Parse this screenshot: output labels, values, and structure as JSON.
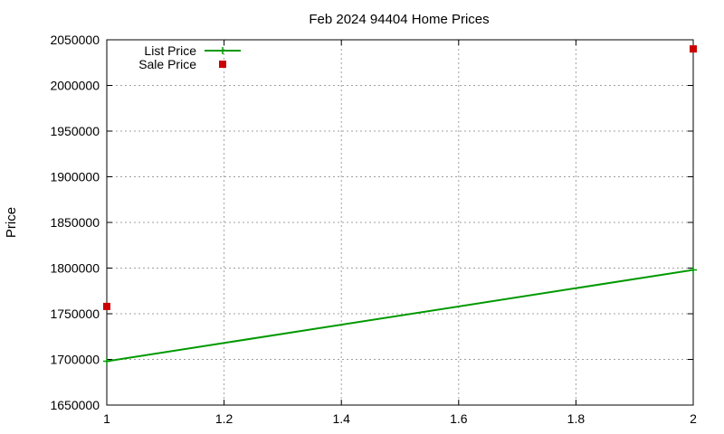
{
  "chart_data": {
    "type": "line",
    "title": "Feb 2024 94404 Home Prices",
    "xlabel": "",
    "ylabel": "Price",
    "xlim": [
      1,
      2
    ],
    "ylim": [
      1650000,
      2050000
    ],
    "xticks": [
      "1",
      "1.2",
      "1.4",
      "1.6",
      "1.8",
      "2"
    ],
    "yticks": [
      "1650000",
      "1700000",
      "1750000",
      "1800000",
      "1850000",
      "1900000",
      "1950000",
      "2000000",
      "2050000"
    ],
    "grid": true,
    "legend_position": "top-left",
    "series": [
      {
        "name": "List Price",
        "style": "linespoints",
        "color": "#009900",
        "points": [
          {
            "x": 1,
            "y": 1698000
          },
          {
            "x": 2,
            "y": 1798000
          }
        ]
      },
      {
        "name": "Sale Price",
        "style": "points",
        "color": "#cc0000",
        "points": [
          {
            "x": 1,
            "y": 1758000
          },
          {
            "x": 2,
            "y": 2040000
          }
        ]
      }
    ]
  }
}
